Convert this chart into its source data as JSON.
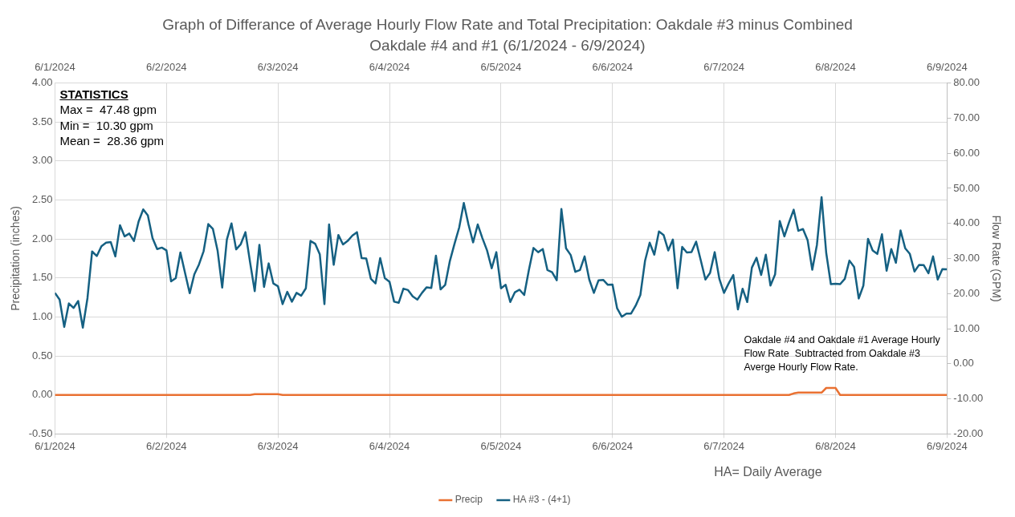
{
  "chart_data": {
    "type": "line",
    "title": "Graph of Differance of Average Hourly Flow Rate and Total Precipitation: Oakdale #3 minus Combined Oakdale #4 and #1 (6/1/2024 - 6/9/2024)",
    "ylabel": "Precipitation (inches)",
    "y2label": "Flow Rate (GPM)",
    "x": [
      "2024-06-01T00:00",
      "2024-06-01T01:00",
      "2024-06-01T02:00",
      "2024-06-01T03:00",
      "2024-06-01T04:00",
      "2024-06-01T05:00",
      "2024-06-01T06:00",
      "2024-06-01T07:00",
      "2024-06-01T08:00",
      "2024-06-01T09:00",
      "2024-06-01T10:00",
      "2024-06-01T11:00",
      "2024-06-01T12:00",
      "2024-06-01T13:00",
      "2024-06-01T14:00",
      "2024-06-01T15:00",
      "2024-06-01T16:00",
      "2024-06-01T17:00",
      "2024-06-01T18:00",
      "2024-06-01T19:00",
      "2024-06-01T20:00",
      "2024-06-01T21:00",
      "2024-06-01T22:00",
      "2024-06-01T23:00",
      "2024-06-02T00:00",
      "2024-06-02T01:00",
      "2024-06-02T02:00",
      "2024-06-02T03:00",
      "2024-06-02T04:00",
      "2024-06-02T05:00",
      "2024-06-02T06:00",
      "2024-06-02T07:00",
      "2024-06-02T08:00",
      "2024-06-02T09:00",
      "2024-06-02T10:00",
      "2024-06-02T11:00",
      "2024-06-02T12:00",
      "2024-06-02T13:00",
      "2024-06-02T14:00",
      "2024-06-02T15:00",
      "2024-06-02T16:00",
      "2024-06-02T17:00",
      "2024-06-02T18:00",
      "2024-06-02T19:00",
      "2024-06-02T20:00",
      "2024-06-02T21:00",
      "2024-06-02T22:00",
      "2024-06-02T23:00",
      "2024-06-03T00:00",
      "2024-06-03T01:00",
      "2024-06-03T02:00",
      "2024-06-03T03:00",
      "2024-06-03T04:00",
      "2024-06-03T05:00",
      "2024-06-03T06:00",
      "2024-06-03T07:00",
      "2024-06-03T08:00",
      "2024-06-03T09:00",
      "2024-06-03T10:00",
      "2024-06-03T11:00",
      "2024-06-03T12:00",
      "2024-06-03T13:00",
      "2024-06-03T14:00",
      "2024-06-03T15:00",
      "2024-06-03T16:00",
      "2024-06-03T17:00",
      "2024-06-03T18:00",
      "2024-06-03T19:00",
      "2024-06-03T20:00",
      "2024-06-03T21:00",
      "2024-06-03T22:00",
      "2024-06-03T23:00",
      "2024-06-04T00:00",
      "2024-06-04T01:00",
      "2024-06-04T02:00",
      "2024-06-04T03:00",
      "2024-06-04T04:00",
      "2024-06-04T05:00",
      "2024-06-04T06:00",
      "2024-06-04T07:00",
      "2024-06-04T08:00",
      "2024-06-04T09:00",
      "2024-06-04T10:00",
      "2024-06-04T11:00",
      "2024-06-04T12:00",
      "2024-06-04T13:00",
      "2024-06-04T14:00",
      "2024-06-04T15:00",
      "2024-06-04T16:00",
      "2024-06-04T17:00",
      "2024-06-04T18:00",
      "2024-06-04T19:00",
      "2024-06-04T20:00",
      "2024-06-04T21:00",
      "2024-06-04T22:00",
      "2024-06-04T23:00",
      "2024-06-05T00:00",
      "2024-06-05T01:00",
      "2024-06-05T02:00",
      "2024-06-05T03:00",
      "2024-06-05T04:00",
      "2024-06-05T05:00",
      "2024-06-05T06:00",
      "2024-06-05T07:00",
      "2024-06-05T08:00",
      "2024-06-05T09:00",
      "2024-06-05T10:00",
      "2024-06-05T11:00",
      "2024-06-05T12:00",
      "2024-06-05T13:00",
      "2024-06-05T14:00",
      "2024-06-05T15:00",
      "2024-06-05T16:00",
      "2024-06-05T17:00",
      "2024-06-05T18:00",
      "2024-06-05T19:00",
      "2024-06-05T20:00",
      "2024-06-05T21:00",
      "2024-06-05T22:00",
      "2024-06-05T23:00",
      "2024-06-06T00:00",
      "2024-06-06T01:00",
      "2024-06-06T02:00",
      "2024-06-06T03:00",
      "2024-06-06T04:00",
      "2024-06-06T05:00",
      "2024-06-06T06:00",
      "2024-06-06T07:00",
      "2024-06-06T08:00",
      "2024-06-06T09:00",
      "2024-06-06T10:00",
      "2024-06-06T11:00",
      "2024-06-06T12:00",
      "2024-06-06T13:00",
      "2024-06-06T14:00",
      "2024-06-06T15:00",
      "2024-06-06T16:00",
      "2024-06-06T17:00",
      "2024-06-06T18:00",
      "2024-06-06T19:00",
      "2024-06-06T20:00",
      "2024-06-06T21:00",
      "2024-06-06T22:00",
      "2024-06-06T23:00",
      "2024-06-07T00:00",
      "2024-06-07T01:00",
      "2024-06-07T02:00",
      "2024-06-07T03:00",
      "2024-06-07T04:00",
      "2024-06-07T05:00",
      "2024-06-07T06:00",
      "2024-06-07T07:00",
      "2024-06-07T08:00",
      "2024-06-07T09:00",
      "2024-06-07T10:00",
      "2024-06-07T11:00",
      "2024-06-07T12:00",
      "2024-06-07T13:00",
      "2024-06-07T14:00",
      "2024-06-07T15:00",
      "2024-06-07T16:00",
      "2024-06-07T17:00",
      "2024-06-07T18:00",
      "2024-06-07T19:00",
      "2024-06-07T20:00",
      "2024-06-07T21:00",
      "2024-06-07T22:00",
      "2024-06-07T23:00",
      "2024-06-08T00:00",
      "2024-06-08T01:00",
      "2024-06-08T02:00",
      "2024-06-08T03:00",
      "2024-06-08T04:00",
      "2024-06-08T05:00",
      "2024-06-08T06:00",
      "2024-06-08T07:00",
      "2024-06-08T08:00",
      "2024-06-08T09:00",
      "2024-06-08T10:00",
      "2024-06-08T11:00",
      "2024-06-08T12:00",
      "2024-06-08T13:00",
      "2024-06-08T14:00",
      "2024-06-08T15:00",
      "2024-06-08T16:00",
      "2024-06-08T17:00",
      "2024-06-08T18:00",
      "2024-06-08T19:00",
      "2024-06-08T20:00",
      "2024-06-08T21:00",
      "2024-06-08T22:00",
      "2024-06-08T23:00",
      "2024-06-09T00:00"
    ],
    "series": [
      {
        "name": "Precip",
        "color": "#e97132",
        "values": [
          0,
          0,
          0,
          0,
          0,
          0,
          0,
          0,
          0,
          0,
          0,
          0,
          0,
          0,
          0,
          0,
          0,
          0,
          0,
          0,
          0,
          0,
          0,
          0,
          0,
          0,
          0,
          0,
          0,
          0,
          0,
          0,
          0,
          0,
          0,
          0,
          0,
          0,
          0,
          0,
          0,
          0,
          0,
          0.01,
          0.01,
          0.01,
          0.01,
          0.01,
          0.01,
          0,
          0,
          0,
          0,
          0,
          0,
          0,
          0,
          0,
          0,
          0,
          0,
          0,
          0,
          0,
          0,
          0,
          0,
          0,
          0,
          0,
          0,
          0,
          0,
          0,
          0,
          0,
          0,
          0,
          0,
          0,
          0,
          0,
          0,
          0,
          0,
          0,
          0,
          0,
          0,
          0,
          0,
          0,
          0,
          0,
          0,
          0,
          0,
          0,
          0,
          0,
          0,
          0,
          0,
          0,
          0,
          0,
          0,
          0,
          0,
          0,
          0,
          0,
          0,
          0,
          0,
          0,
          0,
          0,
          0,
          0,
          0,
          0,
          0,
          0,
          0,
          0,
          0,
          0,
          0,
          0,
          0,
          0,
          0,
          0,
          0,
          0,
          0,
          0,
          0,
          0,
          0,
          0,
          0,
          0,
          0,
          0,
          0,
          0,
          0,
          0,
          0,
          0,
          0,
          0,
          0,
          0,
          0,
          0,
          0,
          0.02,
          0.03,
          0.03,
          0.03,
          0.03,
          0.03,
          0.03,
          0.09,
          0.09,
          0.09,
          0,
          0,
          0,
          0,
          0,
          0,
          0,
          0,
          0,
          0,
          0,
          0,
          0,
          0,
          0,
          0,
          0,
          0,
          0,
          0,
          0,
          0,
          0,
          0
        ]
      },
      {
        "name": "HA #3 - (4+1)",
        "color": "#156082",
        "axis": "y2",
        "values": [
          20.2,
          18.3,
          10.5,
          17.2,
          15.9,
          17.9,
          10.3,
          18.7,
          32.0,
          30.7,
          33.5,
          34.5,
          34.7,
          30.6,
          39.5,
          36.3,
          37.1,
          35.0,
          40.5,
          44.0,
          42.3,
          35.8,
          32.7,
          33.1,
          32.3,
          23.5,
          24.4,
          31.7,
          25.9,
          20.1,
          25.5,
          28.3,
          32.1,
          39.8,
          38.4,
          32.3,
          21.7,
          35.4,
          40.0,
          32.6,
          34.1,
          37.5,
          28.9,
          20.7,
          33.9,
          21.9,
          28.6,
          22.9,
          22.1,
          17.0,
          20.5,
          17.7,
          20.2,
          19.4,
          21.5,
          35.0,
          34.2,
          31.2,
          17.0,
          39.7,
          28.2,
          36.7,
          34.0,
          35.0,
          36.5,
          37.5,
          30.1,
          30.0,
          24.2,
          22.9,
          30.1,
          24.4,
          23.4,
          17.7,
          17.4,
          21.4,
          21.0,
          19.2,
          18.3,
          20.2,
          21.8,
          21.6,
          30.8,
          21.2,
          22.5,
          29.3,
          34.2,
          38.8,
          45.8,
          39.7,
          34.6,
          39.7,
          35.8,
          32.3,
          27.2,
          31.8,
          21.5,
          22.5,
          17.6,
          20.4,
          21.1,
          19.6,
          26.7,
          33.0,
          31.8,
          32.7,
          26.7,
          26.1,
          23.8,
          44.1,
          32.9,
          31.0,
          26.2,
          26.7,
          30.6,
          24.0,
          20.2,
          23.8,
          23.9,
          22.5,
          22.6,
          15.8,
          13.4,
          14.3,
          14.3,
          16.6,
          19.6,
          29.3,
          34.5,
          31.1,
          37.7,
          36.7,
          32.3,
          35.4,
          21.5,
          33.3,
          31.7,
          31.8,
          34.8,
          29.5,
          24.0,
          25.9,
          31.8,
          24.2,
          20.2,
          22.9,
          25.3,
          15.5,
          21.4,
          17.6,
          27.4,
          30.2,
          25.3,
          31.1,
          22.3,
          25.5,
          40.7,
          36.3,
          40.3,
          43.9,
          37.9,
          38.4,
          35.2,
          26.8,
          33.9,
          47.5,
          31.6,
          22.7,
          22.8,
          22.7,
          24.2,
          29.4,
          27.6,
          18.6,
          22.3,
          35.6,
          32.3,
          31.3,
          36.9,
          26.5,
          32.7,
          28.8,
          38.0,
          32.9,
          31.3,
          26.3,
          28.2,
          28.1,
          25.8,
          30.6,
          24.0,
          27.0,
          26.9
        ]
      }
    ],
    "xlim": [
      "2024-06-01",
      "2024-06-09"
    ],
    "xticks": [
      {
        "value": "2024-06-01",
        "label": "6/1/2024"
      },
      {
        "value": "2024-06-02",
        "label": "6/2/2024"
      },
      {
        "value": "2024-06-03",
        "label": "6/3/2024"
      },
      {
        "value": "2024-06-04",
        "label": "6/4/2024"
      },
      {
        "value": "2024-06-05",
        "label": "6/5/2024"
      },
      {
        "value": "2024-06-06",
        "label": "6/6/2024"
      },
      {
        "value": "2024-06-07",
        "label": "6/7/2024"
      },
      {
        "value": "2024-06-08",
        "label": "6/8/2024"
      },
      {
        "value": "2024-06-09",
        "label": "6/9/2024"
      }
    ],
    "x2lim": [
      "2024-06-01",
      "2024-06-09"
    ],
    "x2ticks": [
      {
        "value": "2024-06-01",
        "label": "6/1/2024"
      },
      {
        "value": "2024-06-02",
        "label": "6/2/2024"
      },
      {
        "value": "2024-06-03",
        "label": "6/3/2024"
      },
      {
        "value": "2024-06-04",
        "label": "6/4/2024"
      },
      {
        "value": "2024-06-05",
        "label": "6/5/2024"
      },
      {
        "value": "2024-06-06",
        "label": "6/6/2024"
      },
      {
        "value": "2024-06-07",
        "label": "6/7/2024"
      },
      {
        "value": "2024-06-08",
        "label": "6/8/2024"
      },
      {
        "value": "2024-06-09",
        "label": "6/9/2024"
      }
    ],
    "ylim": [
      -0.5,
      4.0
    ],
    "yticks": [
      {
        "value": -0.5,
        "label": "-0.50"
      },
      {
        "value": 0,
        "label": "0.00"
      },
      {
        "value": 0.5,
        "label": "0.50"
      },
      {
        "value": 1.0,
        "label": "1.00"
      },
      {
        "value": 1.5,
        "label": "1.50"
      },
      {
        "value": 2.0,
        "label": "2.00"
      },
      {
        "value": 2.5,
        "label": "2.50"
      },
      {
        "value": 3.0,
        "label": "3.00"
      },
      {
        "value": 3.5,
        "label": "3.50"
      },
      {
        "value": 4.0,
        "label": "4.00"
      }
    ],
    "y2lim": [
      -20,
      80
    ],
    "y2ticks": [
      {
        "value": -20,
        "label": "-20.00"
      },
      {
        "value": -10,
        "label": "-10.00"
      },
      {
        "value": 0,
        "label": "0.00"
      },
      {
        "value": 10,
        "label": "10.00"
      },
      {
        "value": 20,
        "label": "20.00"
      },
      {
        "value": 30,
        "label": "30.00"
      },
      {
        "value": 40,
        "label": "40.00"
      },
      {
        "value": 50,
        "label": "50.00"
      },
      {
        "value": 60,
        "label": "60.00"
      },
      {
        "value": 70,
        "label": "70.00"
      },
      {
        "value": 80,
        "label": "80.00"
      }
    ],
    "grid": true,
    "legend": "bottom",
    "marker": "none",
    "line_style": "solid",
    "annotations": [
      "STATISTICS",
      "Max =  47.48 gpm",
      "Min =  10.30 gpm",
      "Mean =  28.36 gpm",
      "Oakdale #4 and Oakdale #1 Average Hourly Flow Rate  Subtracted from Oakdale #3 Averge Hourly Flow Rate.",
      "HA= Daily Average"
    ]
  }
}
